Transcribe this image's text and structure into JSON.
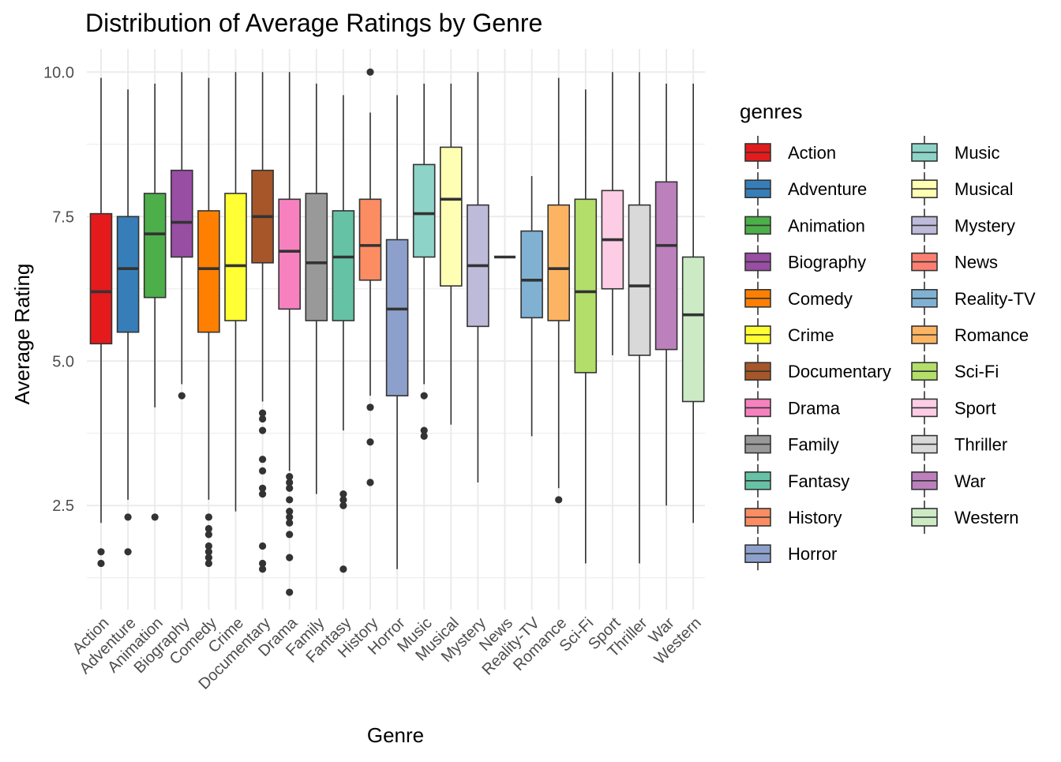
{
  "chart_data": {
    "type": "boxplot",
    "title": "Distribution of Average Ratings by Genre",
    "xlabel": "Genre",
    "ylabel": "Average Rating",
    "ylim": [
      0.7,
      10.4
    ],
    "y_ticks": [
      2.5,
      5.0,
      7.5,
      10.0
    ],
    "y_tick_labels": [
      "2.5",
      "5.0",
      "7.5",
      "10.0"
    ],
    "grid": true,
    "legend_title": "genres",
    "legend_position": "right",
    "legend_columns": 2,
    "series": [
      {
        "name": "Action",
        "color": "#E41A1C",
        "whisker_low": 2.2,
        "q1": 5.3,
        "median": 6.2,
        "q3": 7.55,
        "whisker_high": 9.9,
        "outliers": [
          1.5,
          1.7
        ]
      },
      {
        "name": "Adventure",
        "color": "#377EB8",
        "whisker_low": 2.6,
        "q1": 5.5,
        "median": 6.6,
        "q3": 7.5,
        "whisker_high": 9.7,
        "outliers": [
          1.7,
          2.3
        ]
      },
      {
        "name": "Animation",
        "color": "#4DAF4A",
        "whisker_low": 4.2,
        "q1": 6.1,
        "median": 7.2,
        "q3": 7.9,
        "whisker_high": 9.8,
        "outliers": [
          2.3
        ]
      },
      {
        "name": "Biography",
        "color": "#984EA3",
        "whisker_low": 4.6,
        "q1": 6.8,
        "median": 7.4,
        "q3": 8.3,
        "whisker_high": 10.0,
        "outliers": [
          4.4
        ]
      },
      {
        "name": "Comedy",
        "color": "#FF7F00",
        "whisker_low": 2.6,
        "q1": 5.5,
        "median": 6.6,
        "q3": 7.6,
        "whisker_high": 9.9,
        "outliers": [
          1.5,
          1.6,
          1.7,
          1.8,
          2.0,
          2.1,
          2.3
        ]
      },
      {
        "name": "Crime",
        "color": "#FFFF33",
        "whisker_low": 2.4,
        "q1": 5.7,
        "median": 6.65,
        "q3": 7.9,
        "whisker_high": 10.0,
        "outliers": []
      },
      {
        "name": "Documentary",
        "color": "#A65628",
        "whisker_low": 4.3,
        "q1": 6.7,
        "median": 7.5,
        "q3": 8.3,
        "whisker_high": 10.0,
        "outliers": [
          1.4,
          1.5,
          1.8,
          2.7,
          2.8,
          3.1,
          3.3,
          3.8,
          4.0,
          4.1
        ]
      },
      {
        "name": "Drama",
        "color": "#F781BF",
        "whisker_low": 3.1,
        "q1": 5.9,
        "median": 6.9,
        "q3": 7.8,
        "whisker_high": 10.0,
        "outliers": [
          1.0,
          1.6,
          2.0,
          2.2,
          2.3,
          2.4,
          2.6,
          2.8,
          2.9,
          3.0
        ]
      },
      {
        "name": "Family",
        "color": "#999999",
        "whisker_low": 2.7,
        "q1": 5.7,
        "median": 6.7,
        "q3": 7.9,
        "whisker_high": 9.8,
        "outliers": []
      },
      {
        "name": "Fantasy",
        "color": "#66C2A5",
        "whisker_low": 3.8,
        "q1": 5.7,
        "median": 6.8,
        "q3": 7.6,
        "whisker_high": 9.6,
        "outliers": [
          1.4,
          2.5,
          2.6,
          2.7
        ]
      },
      {
        "name": "History",
        "color": "#FC8D62",
        "whisker_low": 4.4,
        "q1": 6.4,
        "median": 7.0,
        "q3": 7.8,
        "whisker_high": 9.3,
        "outliers": [
          2.9,
          3.6,
          4.2,
          10.0
        ]
      },
      {
        "name": "Horror",
        "color": "#8DA0CB",
        "whisker_low": 1.4,
        "q1": 4.4,
        "median": 5.9,
        "q3": 7.1,
        "whisker_high": 9.6,
        "outliers": []
      },
      {
        "name": "Music",
        "color": "#8DD3C7",
        "whisker_low": 4.6,
        "q1": 6.8,
        "median": 7.55,
        "q3": 8.4,
        "whisker_high": 9.8,
        "outliers": [
          3.7,
          3.8,
          4.4
        ]
      },
      {
        "name": "Musical",
        "color": "#FFFFB3",
        "whisker_low": 3.9,
        "q1": 6.3,
        "median": 7.8,
        "q3": 8.7,
        "whisker_high": 9.8,
        "outliers": []
      },
      {
        "name": "Mystery",
        "color": "#BEBADA",
        "whisker_low": 2.9,
        "q1": 5.6,
        "median": 6.65,
        "q3": 7.7,
        "whisker_high": 10.0,
        "outliers": []
      },
      {
        "name": "News",
        "color": "#FB8072",
        "whisker_low": 6.8,
        "q1": 6.8,
        "median": 6.8,
        "q3": 6.8,
        "whisker_high": 6.8,
        "outliers": []
      },
      {
        "name": "Reality-TV",
        "color": "#80B1D3",
        "whisker_low": 3.7,
        "q1": 5.75,
        "median": 6.4,
        "q3": 7.25,
        "whisker_high": 8.2,
        "outliers": []
      },
      {
        "name": "Romance",
        "color": "#FDB462",
        "whisker_low": 2.8,
        "q1": 5.7,
        "median": 6.6,
        "q3": 7.7,
        "whisker_high": 9.9,
        "outliers": [
          2.6
        ]
      },
      {
        "name": "Sci-Fi",
        "color": "#B3DE69",
        "whisker_low": 1.5,
        "q1": 4.8,
        "median": 6.2,
        "q3": 7.8,
        "whisker_high": 9.7,
        "outliers": []
      },
      {
        "name": "Sport",
        "color": "#FCCDE5",
        "whisker_low": 5.1,
        "q1": 6.25,
        "median": 7.1,
        "q3": 7.95,
        "whisker_high": 10.0,
        "outliers": []
      },
      {
        "name": "Thriller",
        "color": "#D9D9D9",
        "whisker_low": 1.5,
        "q1": 5.1,
        "median": 6.3,
        "q3": 7.7,
        "whisker_high": 10.0,
        "outliers": []
      },
      {
        "name": "War",
        "color": "#BC80BD",
        "whisker_low": 2.5,
        "q1": 5.2,
        "median": 7.0,
        "q3": 8.1,
        "whisker_high": 9.8,
        "outliers": []
      },
      {
        "name": "Western",
        "color": "#CCEBC5",
        "whisker_low": 2.2,
        "q1": 4.3,
        "median": 5.8,
        "q3": 6.8,
        "whisker_high": 9.8,
        "outliers": []
      }
    ]
  }
}
